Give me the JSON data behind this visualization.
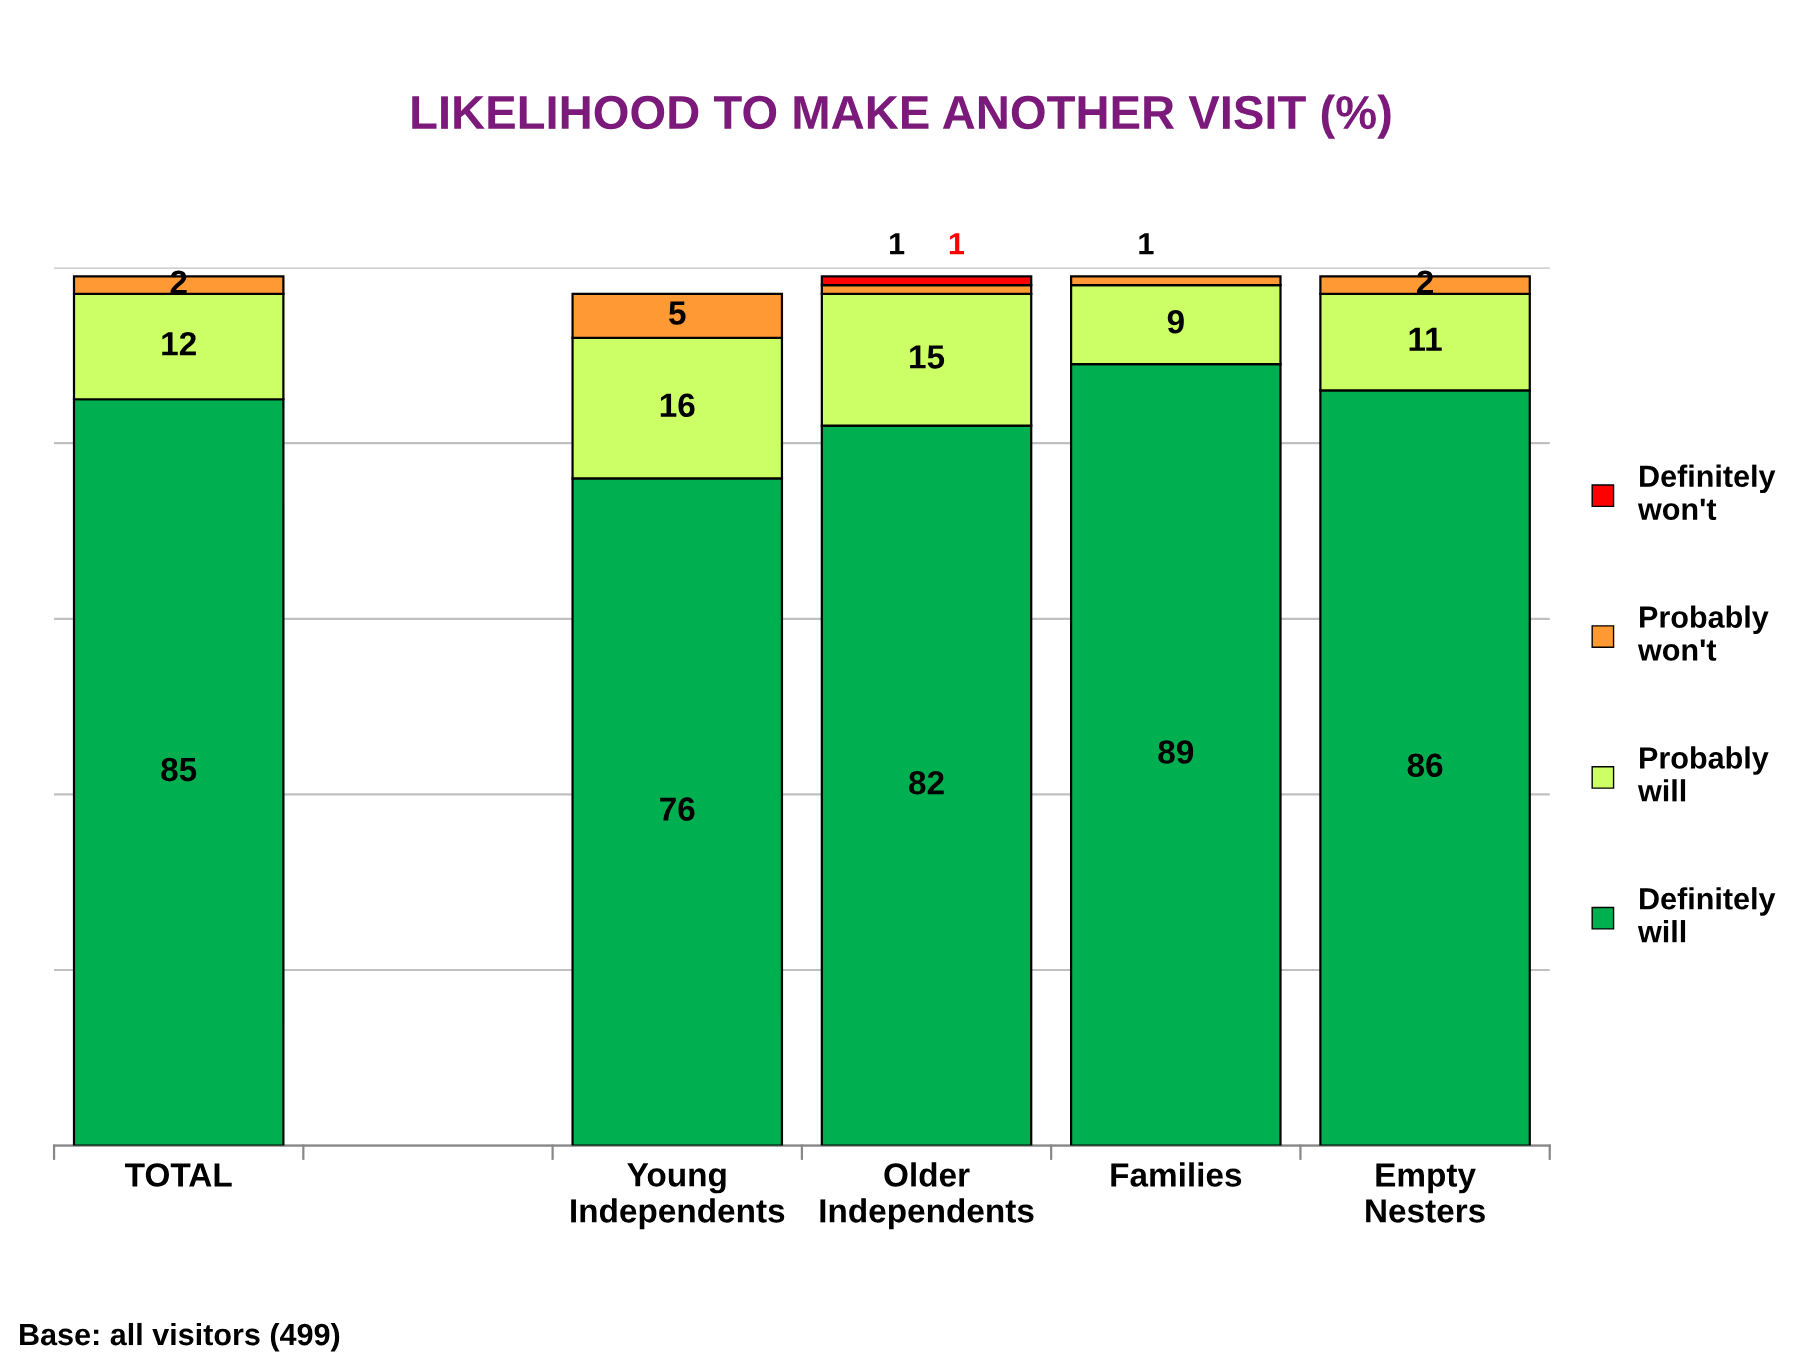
{
  "chart_data": {
    "type": "bar",
    "stacked": true,
    "title": "LIKELIHOOD TO MAKE ANOTHER VISIT (%)",
    "categories": [
      "TOTAL",
      null,
      "Young Independents",
      "Older Independents",
      "Families",
      "Empty Nesters"
    ],
    "series": [
      {
        "name": "Definitely will",
        "color": "#00b050",
        "values": [
          85,
          null,
          76,
          82,
          89,
          86
        ]
      },
      {
        "name": "Probably will",
        "color": "#ccff66",
        "values": [
          12,
          null,
          16,
          15,
          9,
          11
        ]
      },
      {
        "name": "Probably won't",
        "color": "#ff9933",
        "values": [
          2,
          null,
          5,
          1,
          1,
          2
        ]
      },
      {
        "name": "Definitely won't",
        "color": "#ff0000",
        "values": [
          null,
          null,
          null,
          1,
          null,
          null
        ]
      }
    ],
    "ylim": [
      0,
      100
    ],
    "yticks": [
      {
        "value": 0,
        "label": null
      },
      {
        "value": 20,
        "label": null
      },
      {
        "value": 40,
        "label": null
      },
      {
        "value": 60,
        "label": null
      },
      {
        "value": 80,
        "label": null
      },
      {
        "value": 100,
        "label": null
      }
    ],
    "tick_labels": "x",
    "grid": "y",
    "legend": "right",
    "data_labels": true,
    "annotations": [
      "Base: all visitors (499)"
    ]
  }
}
